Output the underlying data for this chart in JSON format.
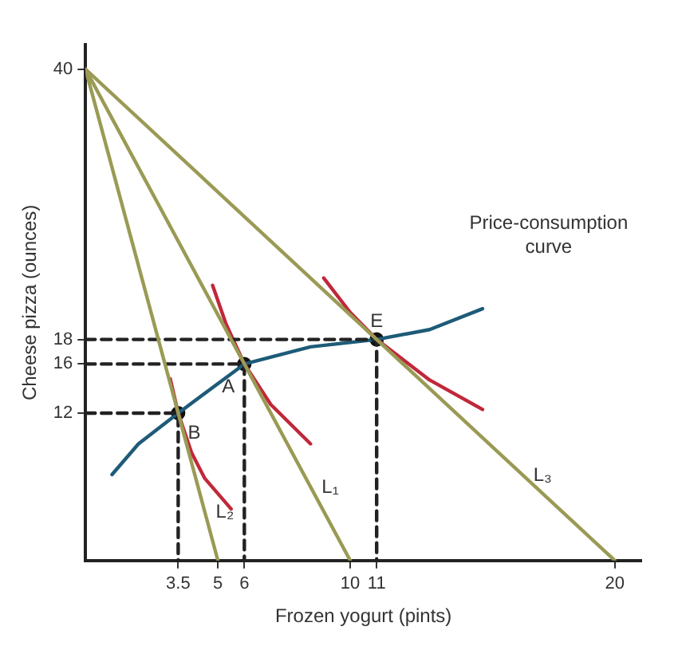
{
  "chart_data": {
    "type": "line",
    "xlabel": "Frozen yogurt (pints)",
    "ylabel": "Cheese pizza (ounces)",
    "xlim": [
      0,
      21
    ],
    "ylim": [
      0,
      42
    ],
    "xticks": [
      3.5,
      5,
      6,
      10,
      11,
      20
    ],
    "yticks": [
      12,
      16,
      18,
      40
    ],
    "grid": false,
    "legend": false,
    "series": [
      {
        "type": "line",
        "color": "#9a9a55",
        "x": [
          0,
          5
        ],
        "values": [
          40,
          0
        ]
      },
      {
        "type": "line",
        "color": "#9a9a55",
        "x": [
          0,
          10
        ],
        "values": [
          40,
          0
        ]
      },
      {
        "type": "line",
        "color": "#9a9a55",
        "x": [
          0,
          20
        ],
        "values": [
          40,
          0
        ]
      },
      {
        "type": "line",
        "color": "#222222",
        "line_style": "dashed",
        "x": [
          0,
          3.5,
          3.5
        ],
        "values": [
          12,
          12,
          0
        ]
      },
      {
        "type": "line",
        "color": "#222222",
        "line_style": "dashed",
        "x": [
          0,
          6,
          6
        ],
        "values": [
          16,
          16,
          0
        ]
      },
      {
        "type": "line",
        "color": "#222222",
        "line_style": "dashed",
        "x": [
          0,
          11,
          11
        ],
        "values": [
          18,
          18,
          0
        ]
      },
      {
        "type": "line",
        "color": "#c0283a",
        "x": [
          3.2,
          3.5,
          4,
          4.5,
          5.5
        ],
        "values": [
          14.8,
          12,
          8.8,
          6.7,
          4.2
        ]
      },
      {
        "type": "line",
        "color": "#c0283a",
        "x": [
          4.8,
          5.3,
          6,
          7,
          8.5
        ],
        "values": [
          22.4,
          19.3,
          16,
          12.7,
          9.5
        ]
      },
      {
        "type": "line",
        "color": "#c0283a",
        "x": [
          9,
          10,
          11,
          13,
          15
        ],
        "values": [
          23,
          20.2,
          18,
          14.7,
          12.3
        ]
      },
      {
        "type": "line",
        "color": "#1d5b78",
        "x": [
          1,
          2,
          3.5,
          6,
          8.5,
          11,
          13,
          15
        ],
        "values": [
          7,
          9.5,
          12,
          16,
          17.4,
          18,
          18.8,
          20.5
        ]
      },
      {
        "type": "scatter",
        "color": "#111111",
        "marker": "circle",
        "x": [
          3.5,
          6,
          11
        ],
        "values": [
          12,
          16,
          18
        ]
      }
    ],
    "annotations": [
      {
        "text": "B",
        "x": 3.5,
        "y": 12
      },
      {
        "text": "A",
        "x": 6,
        "y": 16
      },
      {
        "text": "E",
        "x": 11,
        "y": 18
      },
      {
        "text": "L₂",
        "x": 4.5,
        "y": 4
      },
      {
        "text": "L₁",
        "x": 8.5,
        "y": 6
      },
      {
        "text": "L₃",
        "x": 16.5,
        "y": 7
      },
      "Price-consumption curve"
    ]
  }
}
